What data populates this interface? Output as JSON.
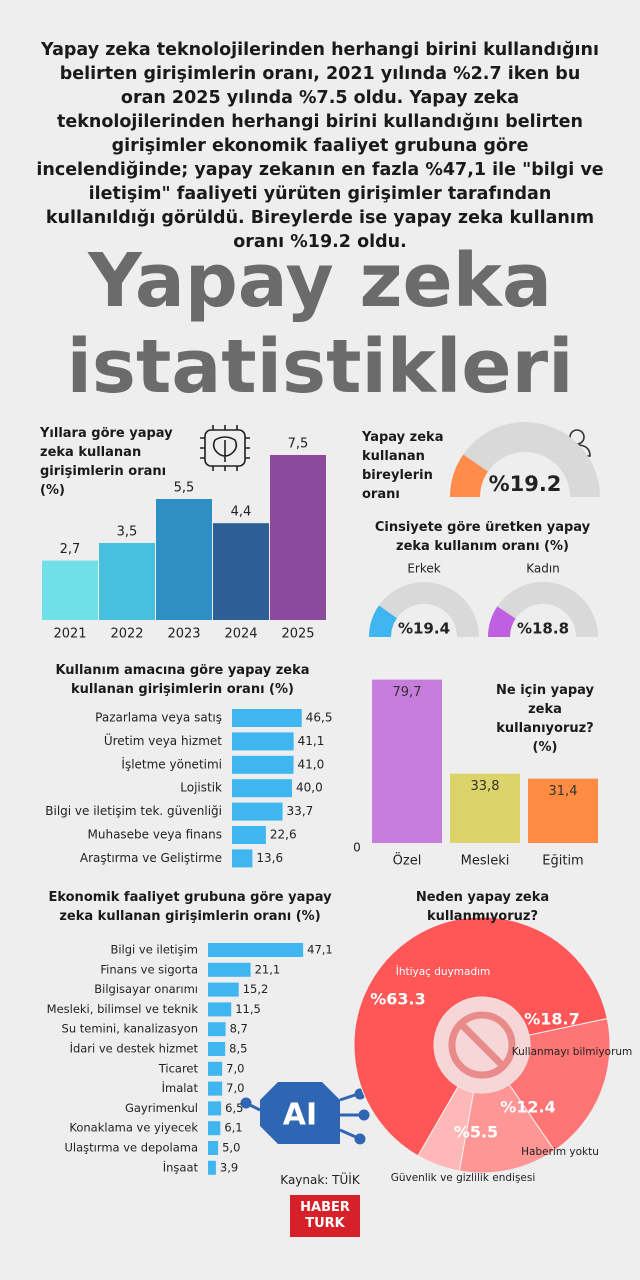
{
  "intro": "Yapay zeka teknolojilerinden herhangi birini kullandığını belirten girişimlerin oranı, 2021 yılında %2.7 iken bu oran 2025 yılında %7.5 oldu. Yapay zeka teknolojilerinden herhangi birini kullandığını belirten girişimler ekonomik faaliyet grubuna göre incelendiğinde; yapay zekanın en fazla %47,1 ile \"bilgi ve iletişim\" faaliyeti yürüten girişimler tarafından kullanıldığı görüldü. Bireylerde ise yapay zeka kullanım oranı %19.2 oldu.",
  "headline": "Yapay zeka istatistikleri",
  "icon_text": "AI",
  "source": "Kaynak: TÜİK",
  "logo": [
    "HABER",
    "TURK"
  ],
  "chart_data": [
    {
      "type": "bar",
      "title": "Yıllara göre yapay zeka kullanan girişimlerin oranı (%)",
      "categories": [
        "2021",
        "2022",
        "2023",
        "2024",
        "2025"
      ],
      "values": [
        2.7,
        3.5,
        5.5,
        4.4,
        7.5
      ],
      "value_labels": [
        "2,7",
        "3,5",
        "5,5",
        "4,4",
        "7,5"
      ],
      "colors": [
        "#6fe0e8",
        "#46c0dc",
        "#2f8fc4",
        "#2e5e96",
        "#8b4a9e"
      ]
    },
    {
      "type": "gauge",
      "title": "Yapay zeka kullanan bireylerin oranı",
      "values": [
        19.2
      ],
      "value_labels": [
        "%19.2"
      ],
      "colors": [
        "#ff8c4a"
      ]
    },
    {
      "type": "gauge",
      "title": "Cinsiyete göre üretken yapay zeka kullanım oranı (%)",
      "categories": [
        "Erkek",
        "Kadın"
      ],
      "values": [
        19.4,
        18.8
      ],
      "value_labels": [
        "%19.4",
        "%18.8"
      ],
      "colors": [
        "#3fb6f0",
        "#c060e0"
      ]
    },
    {
      "type": "barh",
      "title": "Kullanım amacına göre yapay zeka kullanan girişimlerin oranı (%)",
      "categories": [
        "Pazarlama veya satış",
        "Üretim veya hizmet",
        "İşletme yönetimi",
        "Lojistik",
        "Bilgi ve iletişim tek. güvenliği",
        "Muhasebe veya finans",
        "Araştırma ve Geliştirme"
      ],
      "values": [
        46.5,
        41.1,
        41.0,
        40.0,
        33.7,
        22.6,
        13.6
      ],
      "value_labels": [
        "46,5",
        "41,1",
        "41,0",
        "40,0",
        "33,7",
        "22,6",
        "13,6"
      ],
      "color": "#3fb6f0"
    },
    {
      "type": "bar",
      "title": "Ne için yapay zeka kullanıyoruz? (%)",
      "categories": [
        "Özel",
        "Mesleki",
        "Eğitim"
      ],
      "values": [
        79.7,
        33.8,
        31.4
      ],
      "value_labels": [
        "79,7",
        "33,8",
        "31,4"
      ],
      "colors": [
        "#c77ddb",
        "#dcd36b",
        "#ff8c42"
      ],
      "yticks": [
        0
      ]
    },
    {
      "type": "barh",
      "title": "Ekonomik faaliyet grubuna göre yapay zeka kullanan girişimlerin oranı (%)",
      "categories": [
        "Bilgi ve iletişim",
        "Finans ve sigorta",
        "Bilgisayar onarımı",
        "Mesleki, bilimsel ve teknik",
        "Su temini, kanalizasyon",
        "İdari ve destek hizmet",
        "Ticaret",
        "İmalat",
        "Gayrimenkul",
        "Konaklama ve yiyecek",
        "Ulaştırma ve depolama",
        "İnşaat"
      ],
      "values": [
        47.1,
        21.1,
        15.2,
        11.5,
        8.7,
        8.5,
        7.0,
        7.0,
        6.5,
        6.1,
        5.0,
        3.9
      ],
      "value_labels": [
        "47,1",
        "21,1",
        "15,2",
        "11,5",
        "8,7",
        "8,5",
        "7,0",
        "7,0",
        "6,5",
        "6,1",
        "5,0",
        "3,9"
      ],
      "color": "#3fb6f0"
    },
    {
      "type": "donut",
      "title": "Neden yapay zeka kullanmıyoruz?",
      "categories": [
        "İhtiyaç duymadım",
        "Kullanmayı bilmiyorum",
        "Haberim yoktu",
        "Güvenlik ve gizlilik endişesi"
      ],
      "values": [
        63.3,
        18.7,
        12.4,
        5.5
      ],
      "value_labels": [
        "%63.3",
        "%18.7",
        "%12.4",
        "%5.5"
      ],
      "colors": [
        "#ff5757",
        "#ff7474",
        "#ff9696",
        "#ffb8b8"
      ]
    }
  ]
}
